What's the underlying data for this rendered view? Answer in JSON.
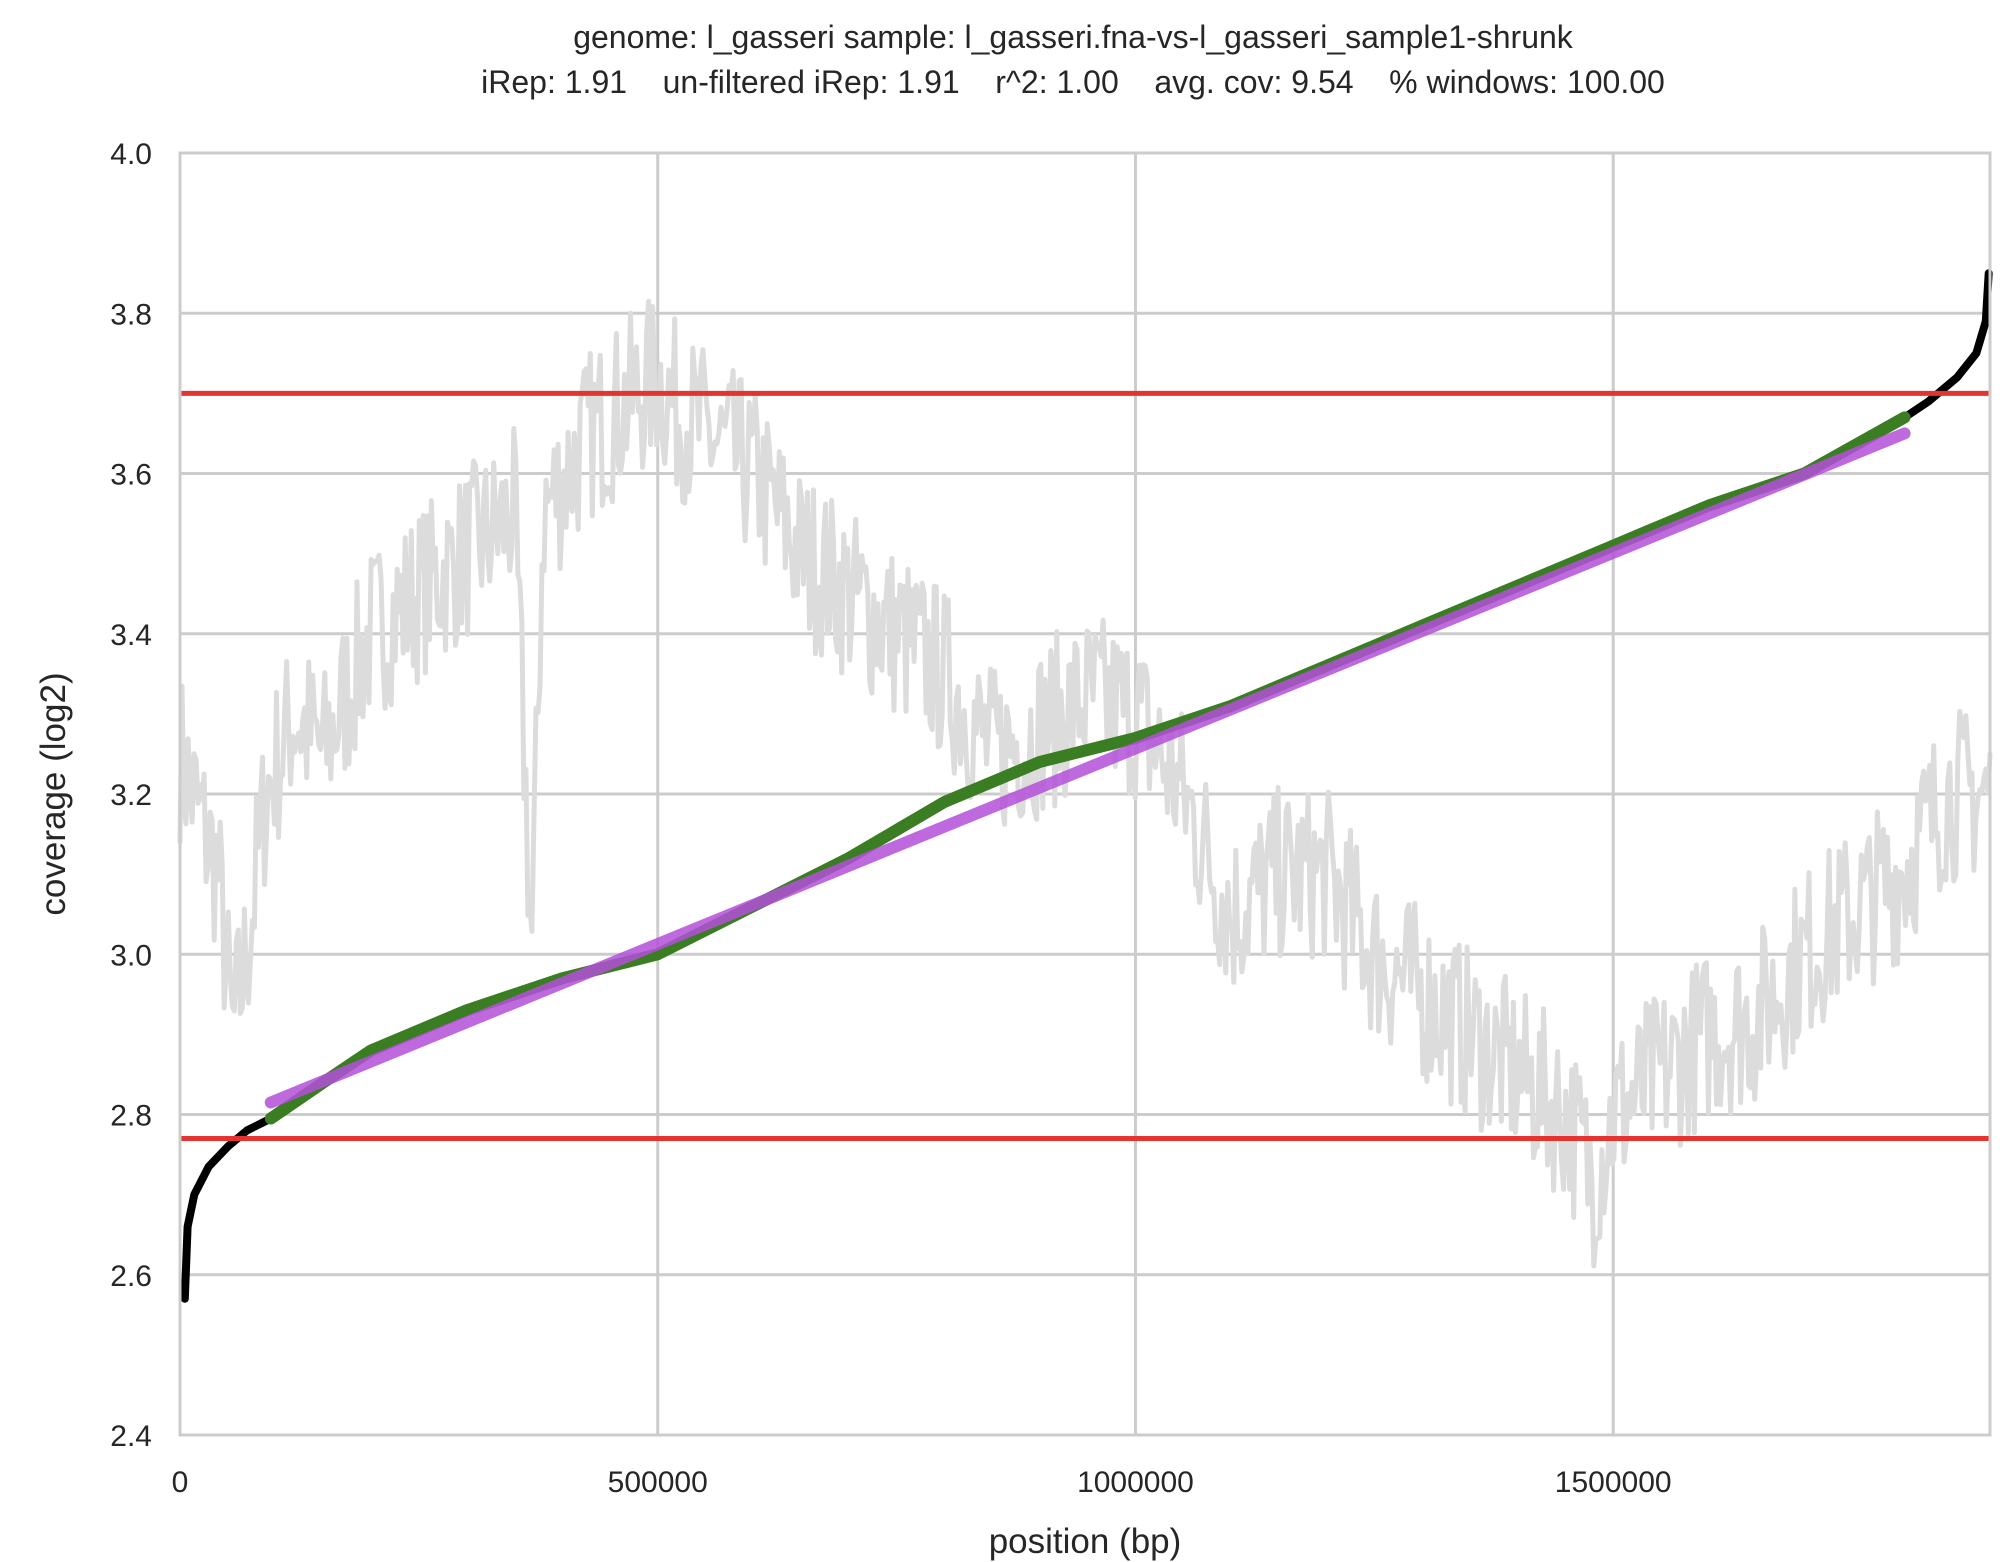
{
  "chart_data": {
    "type": "line",
    "title": "genome: l_gasseri sample: l_gasseri.fna-vs-l_gasseri_sample1-shrunk",
    "subtitle": "iRep: 1.91    un-filtered iRep: 1.91    r^2: 1.00    avg. cov: 9.54    % windows: 100.00",
    "xlabel": "position (bp)",
    "ylabel": "coverage (log2)",
    "xlim": [
      0,
      1894360
    ],
    "ylim": [
      2.4,
      4.0
    ],
    "xticks": [
      0,
      500000,
      1000000,
      1500000
    ],
    "xtick_labels": [
      "0",
      "500000",
      "1000000",
      "1500000"
    ],
    "yticks": [
      2.4,
      2.6,
      2.8,
      3.0,
      3.2,
      3.4,
      3.6,
      3.8,
      4.0
    ],
    "ytick_labels": [
      "2.4",
      "2.6",
      "2.8",
      "3.0",
      "3.2",
      "3.4",
      "3.6",
      "3.8",
      "4.0"
    ],
    "grid": true,
    "series": [
      {
        "role": "raw coverage",
        "color": "#dcdcdc",
        "x": [
          0,
          40000,
          55000,
          70000,
          90000,
          120000,
          150000,
          200000,
          250000,
          300000,
          350000,
          362000,
          368000,
          380000,
          430000,
          480000,
          500000,
          520000,
          600000,
          650000,
          700000,
          750000,
          800000,
          850000,
          900000,
          950000,
          1000000,
          1050000,
          1100000,
          1150000,
          1200000,
          1250000,
          1300000,
          1350000,
          1400000,
          1450000,
          1480000,
          1500000,
          1550000,
          1600000,
          1650000,
          1700000,
          1750000,
          1800000,
          1850000,
          1894360
        ],
        "y": [
          3.25,
          3.1,
          2.9,
          3.0,
          3.2,
          3.3,
          3.25,
          3.4,
          3.45,
          3.5,
          3.55,
          3.2,
          3.0,
          3.55,
          3.65,
          3.7,
          3.72,
          3.68,
          3.6,
          3.5,
          3.45,
          3.4,
          3.35,
          3.25,
          3.28,
          3.32,
          3.3,
          3.2,
          3.05,
          3.1,
          3.1,
          3.0,
          2.95,
          2.9,
          2.85,
          2.8,
          2.72,
          2.8,
          2.85,
          2.9,
          2.92,
          3.0,
          3.05,
          3.1,
          3.2,
          3.2
        ]
      },
      {
        "role": "sorted coverage",
        "color": "#000000",
        "x": [
          5000,
          8000,
          15000,
          30000,
          50000,
          70000,
          95000,
          100000,
          200000,
          300000,
          400000,
          500000,
          600000,
          700000,
          800000,
          900000,
          1000000,
          1100000,
          1200000,
          1300000,
          1400000,
          1500000,
          1600000,
          1700000,
          1805000,
          1830000,
          1860000,
          1880000,
          1890000,
          1893000
        ],
        "y": [
          2.57,
          2.66,
          2.7,
          2.735,
          2.76,
          2.78,
          2.795,
          2.8,
          2.88,
          2.93,
          2.97,
          3.0,
          3.06,
          3.12,
          3.19,
          3.24,
          3.27,
          3.31,
          3.36,
          3.41,
          3.46,
          3.51,
          3.56,
          3.6,
          3.67,
          3.69,
          3.72,
          3.75,
          3.79,
          3.85
        ]
      },
      {
        "role": "filtered sorted coverage",
        "color": "#3a7d22",
        "x": [
          95000,
          150000,
          200000,
          300000,
          400000,
          500000,
          600000,
          700000,
          800000,
          850000,
          900000,
          1000000,
          1100000,
          1200000,
          1300000,
          1400000,
          1500000,
          1600000,
          1700000,
          1805000
        ],
        "y": [
          2.795,
          2.84,
          2.88,
          2.93,
          2.97,
          3.0,
          3.06,
          3.12,
          3.19,
          3.215,
          3.24,
          3.27,
          3.31,
          3.36,
          3.41,
          3.46,
          3.51,
          3.56,
          3.6,
          3.67
        ]
      },
      {
        "role": "fit",
        "color": "#b44fd8",
        "x": [
          95000,
          1805000
        ],
        "y": [
          2.815,
          3.65
        ]
      }
    ],
    "hlines": [
      {
        "y": 3.7,
        "color": "#e3342f"
      },
      {
        "y": 2.77,
        "color": "#e3342f"
      }
    ]
  }
}
